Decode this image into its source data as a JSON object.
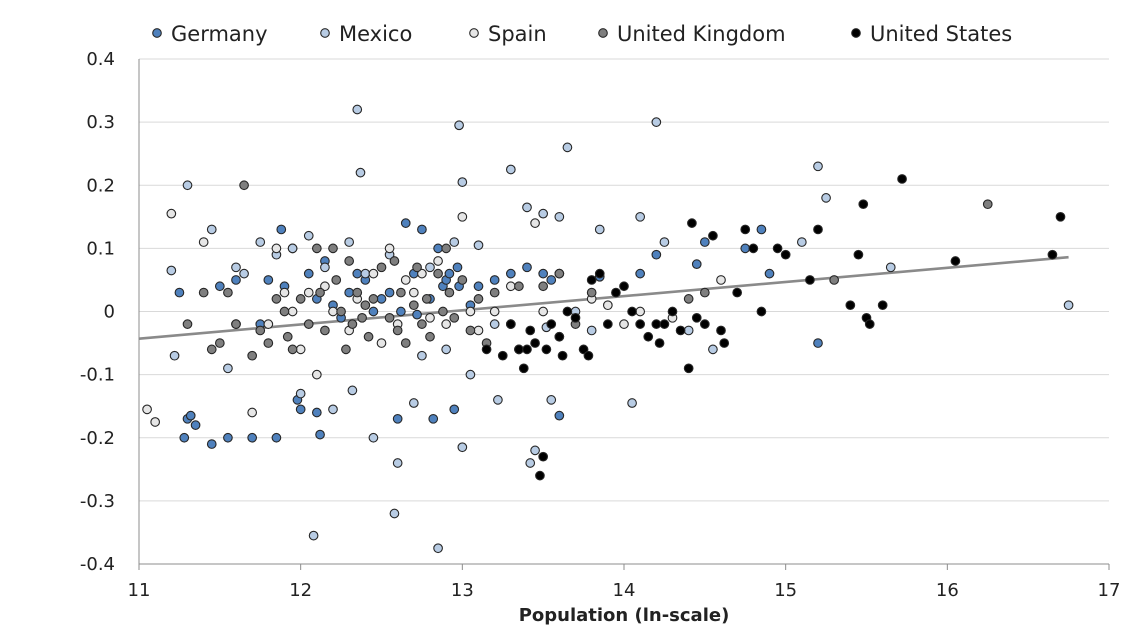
{
  "chart_data": {
    "type": "scatter",
    "xlabel": "Population (ln-scale)",
    "ylabel": "",
    "xlim": [
      11,
      17
    ],
    "ylim": [
      -0.4,
      0.4
    ],
    "xticks": [
      11,
      12,
      13,
      14,
      15,
      16,
      17
    ],
    "yticks": [
      -0.4,
      -0.3,
      -0.2,
      -0.1,
      0,
      0.1,
      0.2,
      0.3,
      0.4
    ],
    "ytick_labels": [
      "-0.4",
      "-0.3",
      "-0.2",
      "-0.1",
      "0",
      "0.1",
      "0.2",
      "0.3",
      "0.4"
    ],
    "grid": "horizontal",
    "legend_position": "top",
    "trendline": {
      "x": [
        11,
        16.75
      ],
      "y": [
        -0.043,
        0.086
      ],
      "color": "#8a8a8a"
    },
    "series": [
      {
        "name": "Germany",
        "color": "#4f81bd",
        "points": [
          [
            11.25,
            0.03
          ],
          [
            11.3,
            -0.17
          ],
          [
            11.35,
            -0.18
          ],
          [
            11.32,
            -0.165
          ],
          [
            11.28,
            -0.2
          ],
          [
            11.45,
            -0.21
          ],
          [
            11.55,
            -0.2
          ],
          [
            11.5,
            0.04
          ],
          [
            11.6,
            0.05
          ],
          [
            11.7,
            -0.2
          ],
          [
            11.75,
            -0.02
          ],
          [
            11.8,
            0.05
          ],
          [
            11.85,
            -0.2
          ],
          [
            11.88,
            0.13
          ],
          [
            11.9,
            0.04
          ],
          [
            11.95,
            0.1
          ],
          [
            11.98,
            -0.14
          ],
          [
            12.0,
            -0.155
          ],
          [
            12.05,
            0.06
          ],
          [
            12.1,
            -0.16
          ],
          [
            12.1,
            0.02
          ],
          [
            12.12,
            -0.195
          ],
          [
            12.15,
            0.08
          ],
          [
            12.2,
            0.01
          ],
          [
            12.25,
            -0.01
          ],
          [
            12.3,
            0.03
          ],
          [
            12.35,
            0.06
          ],
          [
            12.4,
            0.05
          ],
          [
            12.45,
            0.0
          ],
          [
            12.5,
            0.02
          ],
          [
            12.55,
            0.03
          ],
          [
            12.6,
            -0.17
          ],
          [
            12.62,
            0.0
          ],
          [
            12.65,
            0.14
          ],
          [
            12.7,
            0.06
          ],
          [
            12.72,
            -0.005
          ],
          [
            12.75,
            0.13
          ],
          [
            12.8,
            0.02
          ],
          [
            12.82,
            -0.17
          ],
          [
            12.85,
            0.1
          ],
          [
            12.88,
            0.04
          ],
          [
            12.9,
            0.05
          ],
          [
            12.92,
            0.06
          ],
          [
            12.95,
            -0.155
          ],
          [
            12.97,
            0.07
          ],
          [
            12.98,
            0.04
          ],
          [
            13.05,
            0.01
          ],
          [
            13.1,
            0.04
          ],
          [
            13.2,
            0.05
          ],
          [
            13.3,
            0.06
          ],
          [
            13.4,
            0.07
          ],
          [
            13.5,
            0.06
          ],
          [
            13.55,
            0.05
          ],
          [
            13.6,
            -0.165
          ],
          [
            13.85,
            0.055
          ],
          [
            14.1,
            0.06
          ],
          [
            14.2,
            0.09
          ],
          [
            14.45,
            0.075
          ],
          [
            14.5,
            0.11
          ],
          [
            14.75,
            0.1
          ],
          [
            14.85,
            0.13
          ],
          [
            14.9,
            0.06
          ],
          [
            15.2,
            -0.05
          ]
        ]
      },
      {
        "name": "Mexico",
        "color": "#b8cce4",
        "points": [
          [
            11.2,
            0.065
          ],
          [
            11.22,
            -0.07
          ],
          [
            11.3,
            0.2
          ],
          [
            11.45,
            0.13
          ],
          [
            11.55,
            -0.09
          ],
          [
            11.6,
            0.07
          ],
          [
            11.65,
            0.06
          ],
          [
            11.75,
            0.11
          ],
          [
            11.85,
            0.09
          ],
          [
            11.95,
            0.1
          ],
          [
            12.0,
            -0.13
          ],
          [
            12.05,
            0.12
          ],
          [
            12.08,
            -0.355
          ],
          [
            12.15,
            0.07
          ],
          [
            12.2,
            -0.155
          ],
          [
            12.3,
            0.11
          ],
          [
            12.32,
            -0.125
          ],
          [
            12.35,
            0.32
          ],
          [
            12.37,
            0.22
          ],
          [
            12.4,
            0.06
          ],
          [
            12.45,
            -0.2
          ],
          [
            12.55,
            0.09
          ],
          [
            12.58,
            -0.32
          ],
          [
            12.6,
            -0.24
          ],
          [
            12.7,
            -0.145
          ],
          [
            12.75,
            -0.07
          ],
          [
            12.8,
            0.07
          ],
          [
            12.85,
            -0.375
          ],
          [
            12.9,
            -0.06
          ],
          [
            12.95,
            0.11
          ],
          [
            12.98,
            0.295
          ],
          [
            13.0,
            0.205
          ],
          [
            13.0,
            -0.215
          ],
          [
            13.05,
            -0.1
          ],
          [
            13.1,
            0.105
          ],
          [
            13.2,
            -0.02
          ],
          [
            13.22,
            -0.14
          ],
          [
            13.3,
            0.225
          ],
          [
            13.35,
            -0.06
          ],
          [
            13.4,
            0.165
          ],
          [
            13.42,
            -0.24
          ],
          [
            13.45,
            -0.22
          ],
          [
            13.5,
            0.155
          ],
          [
            13.52,
            -0.025
          ],
          [
            13.55,
            -0.14
          ],
          [
            13.6,
            0.15
          ],
          [
            13.6,
            -0.04
          ],
          [
            13.65,
            0.26
          ],
          [
            13.7,
            0.0
          ],
          [
            13.8,
            -0.03
          ],
          [
            13.85,
            0.13
          ],
          [
            14.05,
            -0.145
          ],
          [
            14.1,
            0.15
          ],
          [
            14.2,
            0.3
          ],
          [
            14.25,
            0.11
          ],
          [
            14.4,
            -0.03
          ],
          [
            14.55,
            -0.06
          ],
          [
            15.1,
            0.11
          ],
          [
            15.2,
            0.23
          ],
          [
            15.25,
            0.18
          ],
          [
            15.65,
            0.07
          ],
          [
            16.75,
            0.01
          ]
        ]
      },
      {
        "name": "Spain",
        "color": "#e6e6e6",
        "points": [
          [
            11.05,
            -0.155
          ],
          [
            11.1,
            -0.175
          ],
          [
            11.2,
            0.155
          ],
          [
            11.4,
            0.11
          ],
          [
            11.6,
            -0.02
          ],
          [
            11.7,
            -0.16
          ],
          [
            11.8,
            -0.02
          ],
          [
            11.85,
            0.1
          ],
          [
            11.9,
            0.03
          ],
          [
            11.95,
            0.0
          ],
          [
            12.0,
            -0.06
          ],
          [
            12.05,
            0.03
          ],
          [
            12.1,
            -0.1
          ],
          [
            12.15,
            0.04
          ],
          [
            12.2,
            0.0
          ],
          [
            12.3,
            -0.03
          ],
          [
            12.35,
            0.02
          ],
          [
            12.45,
            0.06
          ],
          [
            12.5,
            -0.05
          ],
          [
            12.55,
            0.1
          ],
          [
            12.6,
            -0.02
          ],
          [
            12.65,
            0.05
          ],
          [
            12.7,
            0.03
          ],
          [
            12.75,
            0.06
          ],
          [
            12.8,
            -0.01
          ],
          [
            12.85,
            0.08
          ],
          [
            12.9,
            -0.02
          ],
          [
            13.0,
            0.15
          ],
          [
            13.05,
            0.0
          ],
          [
            13.1,
            -0.03
          ],
          [
            13.2,
            0.0
          ],
          [
            13.3,
            0.04
          ],
          [
            13.45,
            0.14
          ],
          [
            13.5,
            0.0
          ],
          [
            13.6,
            0.06
          ],
          [
            13.8,
            0.02
          ],
          [
            13.9,
            0.01
          ],
          [
            14.0,
            -0.02
          ],
          [
            14.1,
            0.0
          ],
          [
            14.3,
            -0.01
          ],
          [
            14.6,
            0.05
          ]
        ]
      },
      {
        "name": "United Kingdom",
        "color": "#7f7f7f",
        "points": [
          [
            11.3,
            -0.02
          ],
          [
            11.4,
            0.03
          ],
          [
            11.45,
            -0.06
          ],
          [
            11.5,
            -0.05
          ],
          [
            11.55,
            0.03
          ],
          [
            11.6,
            -0.02
          ],
          [
            11.65,
            0.2
          ],
          [
            11.7,
            -0.07
          ],
          [
            11.75,
            -0.03
          ],
          [
            11.8,
            -0.05
          ],
          [
            11.85,
            0.02
          ],
          [
            11.9,
            0.0
          ],
          [
            11.92,
            -0.04
          ],
          [
            11.95,
            -0.06
          ],
          [
            12.0,
            0.02
          ],
          [
            12.05,
            -0.02
          ],
          [
            12.1,
            0.1
          ],
          [
            12.12,
            0.03
          ],
          [
            12.15,
            -0.03
          ],
          [
            12.2,
            0.1
          ],
          [
            12.22,
            0.05
          ],
          [
            12.25,
            0.0
          ],
          [
            12.28,
            -0.06
          ],
          [
            12.3,
            0.08
          ],
          [
            12.32,
            -0.02
          ],
          [
            12.35,
            0.03
          ],
          [
            12.38,
            -0.01
          ],
          [
            12.4,
            0.01
          ],
          [
            12.42,
            -0.04
          ],
          [
            12.45,
            0.02
          ],
          [
            12.5,
            0.07
          ],
          [
            12.55,
            -0.01
          ],
          [
            12.58,
            0.08
          ],
          [
            12.6,
            -0.03
          ],
          [
            12.62,
            0.03
          ],
          [
            12.65,
            -0.05
          ],
          [
            12.7,
            0.01
          ],
          [
            12.72,
            0.07
          ],
          [
            12.75,
            -0.02
          ],
          [
            12.78,
            0.02
          ],
          [
            12.8,
            -0.04
          ],
          [
            12.85,
            0.06
          ],
          [
            12.88,
            0.0
          ],
          [
            12.9,
            0.1
          ],
          [
            12.92,
            0.03
          ],
          [
            12.95,
            -0.01
          ],
          [
            13.0,
            0.05
          ],
          [
            13.05,
            -0.03
          ],
          [
            13.1,
            0.02
          ],
          [
            13.15,
            -0.05
          ],
          [
            13.2,
            0.03
          ],
          [
            13.3,
            -0.02
          ],
          [
            13.35,
            0.04
          ],
          [
            13.5,
            0.04
          ],
          [
            13.6,
            0.06
          ],
          [
            13.7,
            -0.02
          ],
          [
            13.8,
            0.03
          ],
          [
            14.4,
            0.02
          ],
          [
            14.5,
            0.03
          ],
          [
            15.3,
            0.05
          ],
          [
            16.25,
            0.17
          ]
        ]
      },
      {
        "name": "United States",
        "color": "#000000",
        "points": [
          [
            13.15,
            -0.06
          ],
          [
            13.25,
            -0.07
          ],
          [
            13.3,
            -0.02
          ],
          [
            13.35,
            -0.06
          ],
          [
            13.38,
            -0.09
          ],
          [
            13.4,
            -0.06
          ],
          [
            13.42,
            -0.03
          ],
          [
            13.45,
            -0.05
          ],
          [
            13.48,
            -0.26
          ],
          [
            13.5,
            -0.23
          ],
          [
            13.52,
            -0.06
          ],
          [
            13.55,
            -0.02
          ],
          [
            13.6,
            -0.04
          ],
          [
            13.62,
            -0.07
          ],
          [
            13.65,
            0.0
          ],
          [
            13.7,
            -0.01
          ],
          [
            13.75,
            -0.06
          ],
          [
            13.78,
            -0.07
          ],
          [
            13.8,
            0.05
          ],
          [
            13.85,
            0.06
          ],
          [
            13.9,
            -0.02
          ],
          [
            13.95,
            0.03
          ],
          [
            14.0,
            0.04
          ],
          [
            14.05,
            0.0
          ],
          [
            14.1,
            -0.02
          ],
          [
            14.15,
            -0.04
          ],
          [
            14.2,
            -0.02
          ],
          [
            14.22,
            -0.05
          ],
          [
            14.25,
            -0.02
          ],
          [
            14.3,
            0.0
          ],
          [
            14.35,
            -0.03
          ],
          [
            14.4,
            -0.09
          ],
          [
            14.42,
            0.14
          ],
          [
            14.45,
            -0.01
          ],
          [
            14.5,
            -0.02
          ],
          [
            14.55,
            0.12
          ],
          [
            14.6,
            -0.03
          ],
          [
            14.62,
            -0.05
          ],
          [
            14.7,
            0.03
          ],
          [
            14.75,
            0.13
          ],
          [
            14.8,
            0.1
          ],
          [
            14.85,
            0.0
          ],
          [
            14.95,
            0.1
          ],
          [
            15.0,
            0.09
          ],
          [
            15.15,
            0.05
          ],
          [
            15.2,
            0.13
          ],
          [
            15.4,
            0.01
          ],
          [
            15.45,
            0.09
          ],
          [
            15.48,
            0.17
          ],
          [
            15.5,
            -0.01
          ],
          [
            15.52,
            -0.02
          ],
          [
            15.6,
            0.01
          ],
          [
            15.72,
            0.21
          ],
          [
            16.05,
            0.08
          ],
          [
            16.65,
            0.09
          ],
          [
            16.7,
            0.15
          ]
        ]
      }
    ]
  }
}
